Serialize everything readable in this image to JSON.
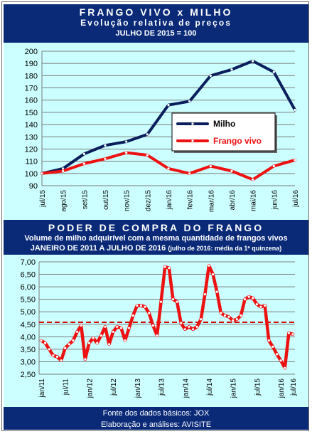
{
  "header1": {
    "title": "FRANGO VIVO x MILHO",
    "subtitle": "Evolução relativa de preços",
    "base": "JULHO DE 2015 = 100"
  },
  "header2": {
    "title": "PODER DE COMPRA DO FRANGO",
    "subtitle": "Volume de milho adquirível com a mesma quantidade de frangos vivos",
    "period": "JANEIRO DE 2011 A JULHO DE 2016",
    "note": "(julho de 2016: média da 1ª quinzena)"
  },
  "footer": {
    "source": "Fonte dos dados básicos: JOX",
    "credits": "Elaboração e análises: AVISITE"
  },
  "colors": {
    "header_bg": "#0a2a78",
    "chart_bg": "#ccffff",
    "milho": "#0a1f5c",
    "frango": "#ee1111",
    "border": "#6b6b6b"
  },
  "chart_data": [
    {
      "type": "line",
      "categories": [
        "jul/15",
        "ago/15",
        "set/15",
        "out/15",
        "nov/15",
        "dez/15",
        "jan/16",
        "fev/16",
        "mar/16",
        "abr/16",
        "mai/16",
        "jun/16",
        "jul/16"
      ],
      "series": [
        {
          "name": "Milho",
          "color": "#0a1f5c",
          "values": [
            100,
            104,
            116,
            123,
            126,
            132,
            156,
            159,
            180,
            185,
            192,
            183,
            152
          ]
        },
        {
          "name": "Frango vivo",
          "color": "#ee1111",
          "values": [
            100,
            102,
            108,
            112,
            117,
            115,
            104,
            100,
            106,
            102,
            95,
            106,
            111
          ]
        }
      ],
      "yticks": [
        "200",
        "190",
        "180",
        "170",
        "160",
        "150",
        "140",
        "130",
        "120",
        "110",
        "100",
        "90"
      ],
      "ylim": [
        90,
        200
      ],
      "grid": true,
      "legend": "right-center"
    },
    {
      "type": "line",
      "x_labels": [
        "jan/11",
        "jul/11",
        "jan/12",
        "jul/12",
        "jan/13",
        "jul/13",
        "jan/14",
        "jul/14",
        "jan/15",
        "jul/15",
        "jan/16",
        "jul/16"
      ],
      "series": [
        {
          "name": "Poder de compra",
          "color": "#ee1111",
          "values": [
            3.85,
            3.75,
            3.5,
            3.25,
            3.2,
            3.05,
            3.55,
            3.7,
            3.85,
            4.2,
            4.45,
            3.1,
            3.75,
            3.95,
            3.75,
            4.05,
            4.4,
            3.7,
            4.2,
            4.4,
            4.35,
            3.85,
            4.35,
            4.85,
            5.25,
            5.25,
            5.2,
            4.95,
            4.45,
            4.05,
            5.4,
            6.8,
            6.75,
            5.5,
            5.4,
            4.55,
            4.3,
            4.4,
            4.3,
            4.4,
            4.7,
            5.7,
            6.85,
            6.5,
            5.8,
            4.95,
            4.85,
            4.8,
            4.65,
            4.7,
            4.85,
            5.5,
            5.6,
            5.55,
            5.3,
            5.2,
            5.25,
            3.85,
            3.6,
            3.3,
            3.05,
            2.75,
            4.15,
            4.1
          ]
        },
        {
          "name": "Média",
          "color": "#cc0000",
          "values": [
            4.58
          ]
        }
      ],
      "yticks": [
        "7,00",
        "6,50",
        "6,00",
        "5,50",
        "5,00",
        "4,50",
        "4,00",
        "3,50",
        "3,00",
        "2,50"
      ],
      "ylim": [
        2.5,
        7.0
      ],
      "grid": true
    }
  ]
}
